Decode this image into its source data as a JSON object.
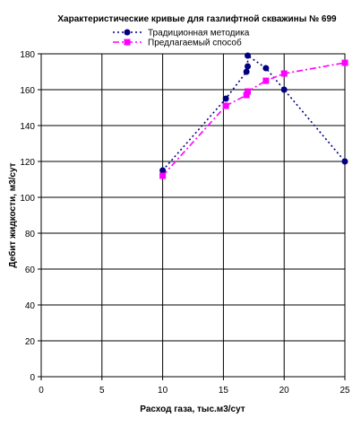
{
  "chart_data": {
    "type": "line",
    "title": "Характеристические кривые для газлифтной скважины № 699",
    "xlabel": "Расход газа, тыс.м3/сут",
    "ylabel": "Дебит жидкости, м3/сут",
    "xlim": [
      0,
      25
    ],
    "ylim": [
      0,
      180
    ],
    "xticks": [
      0,
      5,
      10,
      15,
      20,
      25
    ],
    "yticks": [
      0,
      20,
      40,
      60,
      80,
      100,
      120,
      140,
      160,
      180
    ],
    "xtick_labels": [
      "0",
      "5",
      "10",
      "15",
      "20",
      "25"
    ],
    "ytick_labels": [
      "0",
      "20",
      "40",
      "60",
      "80",
      "100",
      "120",
      "140",
      "160",
      "180"
    ],
    "grid": true,
    "legend_position": "top",
    "series": [
      {
        "name": "Традиционная методика",
        "color": "#000080",
        "marker": "circle",
        "line_style": "dotted",
        "x": [
          10,
          15.2,
          16.9,
          17.0,
          17.0,
          18.5,
          20.0,
          25.0
        ],
        "y": [
          115,
          155,
          170,
          173,
          179,
          172,
          160,
          120
        ]
      },
      {
        "name": "Предлагаемый способ",
        "color": "#ff00ff",
        "marker": "square",
        "line_style": "dashdot",
        "x": [
          10,
          15.2,
          16.9,
          17.0,
          18.5,
          20.0,
          25.0
        ],
        "y": [
          112,
          151,
          157,
          159,
          165,
          169,
          175
        ]
      }
    ]
  }
}
